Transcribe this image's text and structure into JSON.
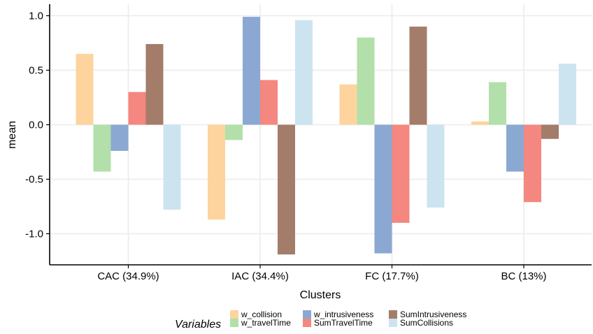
{
  "chart_data": {
    "type": "bar",
    "xlabel": "Clusters",
    "ylabel": "mean",
    "ylim": [
      -1.3,
      1.1
    ],
    "yticks": [
      1.0,
      0.5,
      0.0,
      -0.5,
      -1.0
    ],
    "ytick_labels": [
      "1.0",
      "0.5",
      "0.0",
      "-0.5",
      "-1.0"
    ],
    "grid": true,
    "legend_title": "Variables",
    "legend_position": "bottom",
    "categories": [
      "CAC (34.9%)",
      "IAC (34.4%)",
      "FC (17.7%)",
      "BC (13%)"
    ],
    "series": [
      {
        "name": "w_collision",
        "color": "#fdd49e",
        "values": [
          0.65,
          -0.87,
          0.37,
          0.03
        ]
      },
      {
        "name": "w_travelTime",
        "color": "#b2dfaa",
        "values": [
          -0.43,
          -0.14,
          0.8,
          0.39
        ]
      },
      {
        "name": "w_intrusiveness",
        "color": "#8aa8d2",
        "values": [
          -0.24,
          0.99,
          -1.18,
          -0.43
        ]
      },
      {
        "name": "SumTravelTime",
        "color": "#f4877f",
        "values": [
          0.3,
          0.41,
          -0.9,
          -0.71
        ]
      },
      {
        "name": "SumIntrusiveness",
        "color": "#a37c6a",
        "values": [
          0.74,
          -1.19,
          0.9,
          -0.13
        ]
      },
      {
        "name": "SumCollisions",
        "color": "#cce4ef",
        "values": [
          -0.78,
          0.96,
          -0.76,
          0.56
        ]
      }
    ]
  }
}
